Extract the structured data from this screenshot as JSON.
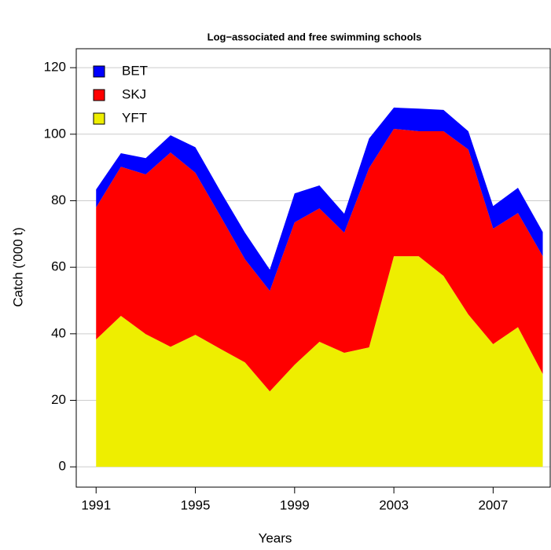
{
  "chart_data": {
    "type": "stacked-area",
    "title": "Log−associated and free swimming schools",
    "x_label": "Years",
    "y_label": "Catch ('000 t)",
    "x": [
      1991,
      1992,
      1993,
      1994,
      1995,
      1996,
      1997,
      1998,
      1999,
      2000,
      2001,
      2002,
      2003,
      2004,
      2005,
      2006,
      2007,
      2008,
      2009
    ],
    "series": [
      {
        "name": "YFT",
        "color": "#eeee00",
        "values": [
          38.3,
          45.4,
          39.9,
          36.1,
          39.7,
          35.5,
          31.4,
          22.7,
          30.7,
          37.6,
          34.3,
          35.9,
          63.3,
          63.3,
          57.4,
          45.8,
          36.9,
          42.0,
          27.9
        ]
      },
      {
        "name": "SKJ",
        "color": "#ff0000",
        "values": [
          39.7,
          44.8,
          48.0,
          58.4,
          48.7,
          40.0,
          31.0,
          30.2,
          42.8,
          40.1,
          36.1,
          53.9,
          38.3,
          37.6,
          43.5,
          49.6,
          34.7,
          34.3,
          35.4
        ]
      },
      {
        "name": "BET",
        "color": "#0000ff",
        "values": [
          5.4,
          4.1,
          4.9,
          5.2,
          7.7,
          7.5,
          8.0,
          6.4,
          8.7,
          6.9,
          5.7,
          8.9,
          6.4,
          6.8,
          6.4,
          5.5,
          6.8,
          7.6,
          7.3
        ]
      }
    ],
    "xlim": [
      1990.2,
      2009.3
    ],
    "xticks": [
      1991,
      1995,
      1999,
      2003,
      2007
    ],
    "ylim": [
      -6.1,
      125.7
    ],
    "yticks": [
      0,
      20,
      40,
      60,
      80,
      100,
      120
    ],
    "grid": true,
    "legend": "top-left"
  }
}
